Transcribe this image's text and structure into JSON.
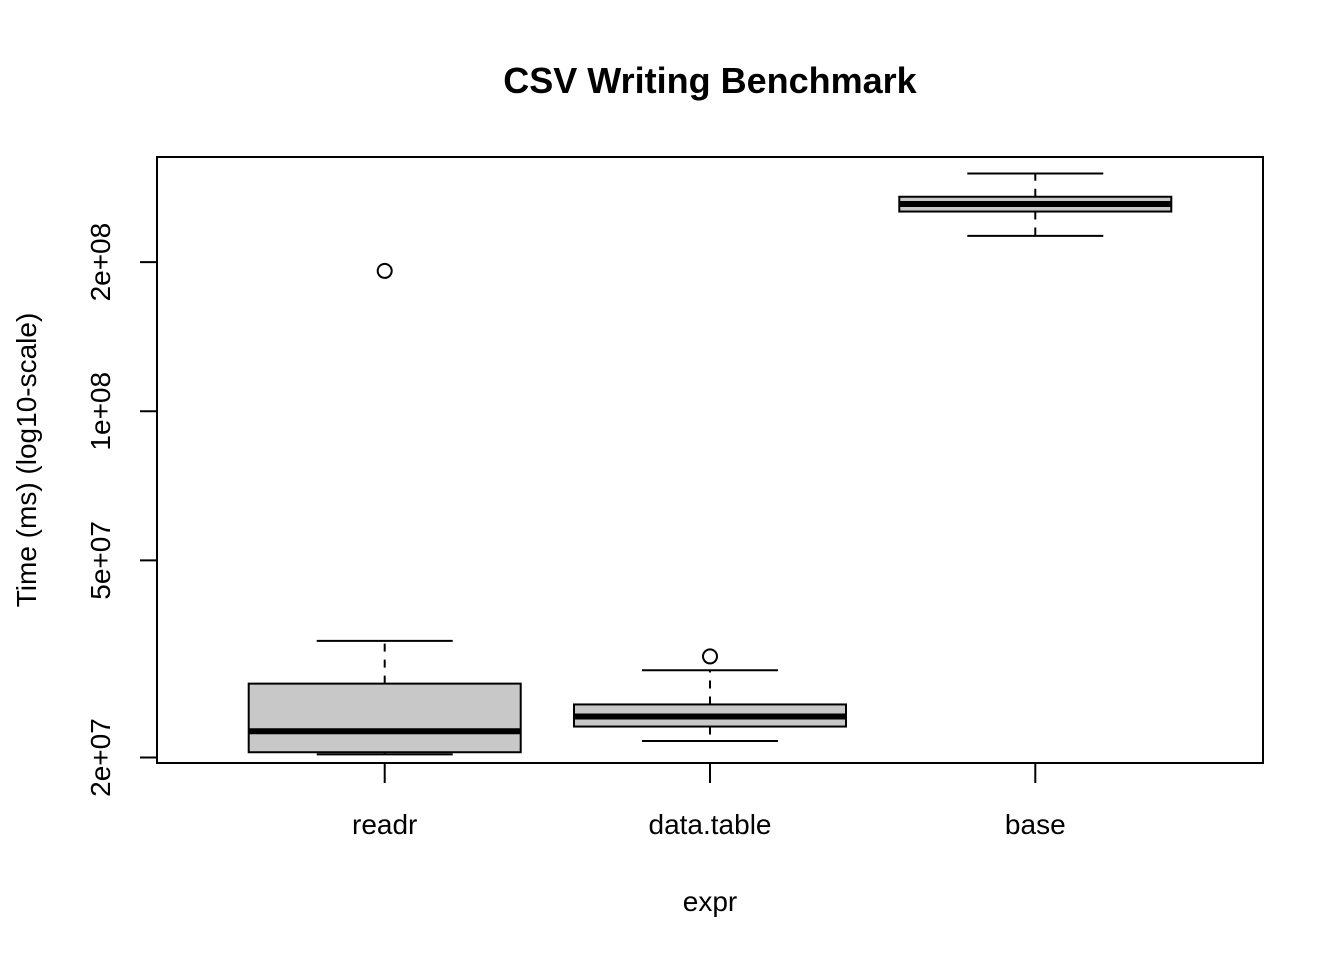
{
  "chart_data": {
    "type": "box",
    "title": "CSV Writing Benchmark",
    "xlabel": "expr",
    "ylabel": "Time (ms) (log10-scale)",
    "y_scale": "log10",
    "ylim": [
      19500000,
      326000000
    ],
    "y_ticks": [
      {
        "value": 20000000,
        "label": "2e+07"
      },
      {
        "value": 50000000,
        "label": "5e+07"
      },
      {
        "value": 100000000,
        "label": "1e+08"
      },
      {
        "value": 200000000,
        "label": "2e+08"
      }
    ],
    "grid": false,
    "box_fill": "#c8c8c8",
    "boxes": [
      {
        "category": "readr",
        "whisker_low": 20300000,
        "q1": 20500000,
        "median": 22600000,
        "q3": 28200000,
        "whisker_high": 34400000,
        "outliers": [
          192000000
        ]
      },
      {
        "category": "data.table",
        "whisker_low": 21600000,
        "q1": 23100000,
        "median": 24200000,
        "q3": 25600000,
        "whisker_high": 30000000,
        "outliers": [
          32000000
        ]
      },
      {
        "category": "base",
        "whisker_low": 226000000,
        "q1": 253000000,
        "median": 262000000,
        "q3": 271000000,
        "whisker_high": 302000000,
        "outliers": []
      }
    ]
  }
}
